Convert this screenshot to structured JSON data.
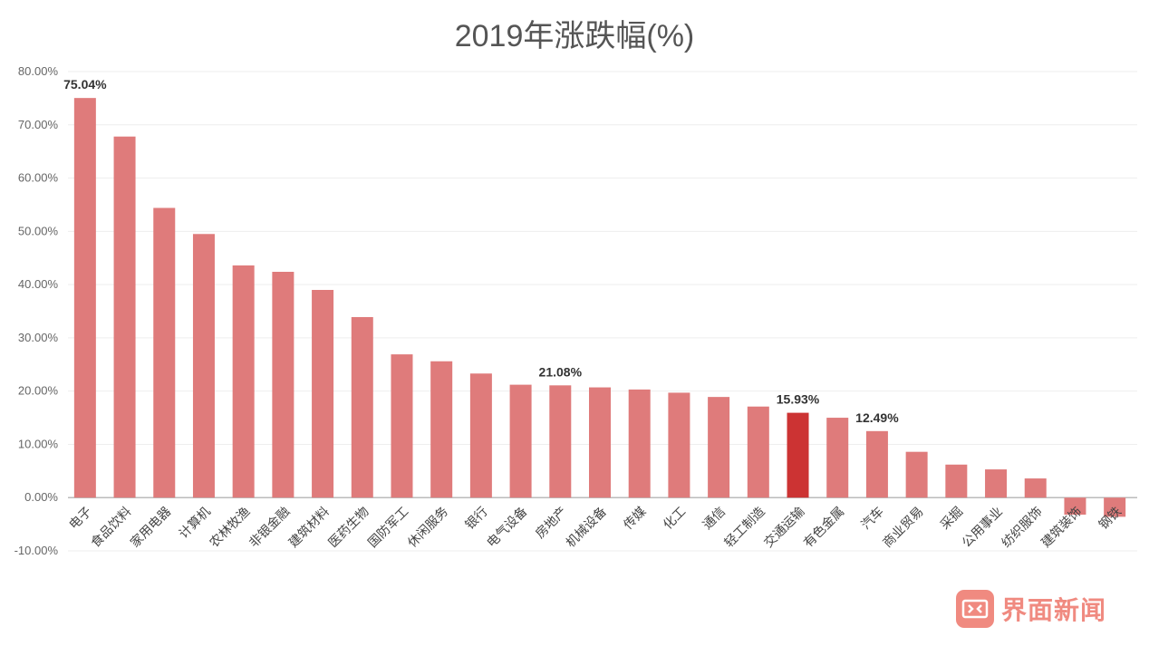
{
  "chart_data": {
    "type": "bar",
    "title": "2019年涨跌幅(%)",
    "xlabel": "",
    "ylabel": "",
    "ylim": [
      -10,
      80
    ],
    "yticks": [
      -10,
      0,
      10,
      20,
      30,
      40,
      50,
      60,
      70,
      80
    ],
    "ytick_labels": [
      "-10.00%",
      "0.00%",
      "10.00%",
      "20.00%",
      "30.00%",
      "40.00%",
      "50.00%",
      "60.00%",
      "70.00%",
      "80.00%"
    ],
    "grid": true,
    "legend": "none",
    "categories": [
      "电子",
      "食品饮料",
      "家用电器",
      "计算机",
      "农林牧渔",
      "非银金融",
      "建筑材料",
      "医药生物",
      "国防军工",
      "休闲服务",
      "银行",
      "电气设备",
      "房地产",
      "机械设备",
      "传媒",
      "化工",
      "通信",
      "轻工制造",
      "交通运输",
      "有色金属",
      "汽车",
      "商业贸易",
      "采掘",
      "公用事业",
      "纺织服饰",
      "建筑装饰",
      "钢铁"
    ],
    "values": [
      75.04,
      67.8,
      54.4,
      49.5,
      43.6,
      42.4,
      39.0,
      33.9,
      26.9,
      25.6,
      23.3,
      21.2,
      21.08,
      20.7,
      20.3,
      19.7,
      18.9,
      17.1,
      15.93,
      15.0,
      12.49,
      8.6,
      6.2,
      5.3,
      3.6,
      -3.2,
      -3.6
    ],
    "highlight_index": 18,
    "data_labels": [
      {
        "index": 0,
        "text": "75.04%"
      },
      {
        "index": 12,
        "text": "21.08%"
      },
      {
        "index": 18,
        "text": "15.93%"
      },
      {
        "index": 20,
        "text": "12.49%"
      }
    ],
    "colors": {
      "bar": "#df7b7b",
      "highlight": "#cc3333",
      "grid": "#eeeeee",
      "axis": "#bbbbbb"
    }
  },
  "logo": {
    "text": "界面新闻",
    "color": "#f08a80"
  }
}
